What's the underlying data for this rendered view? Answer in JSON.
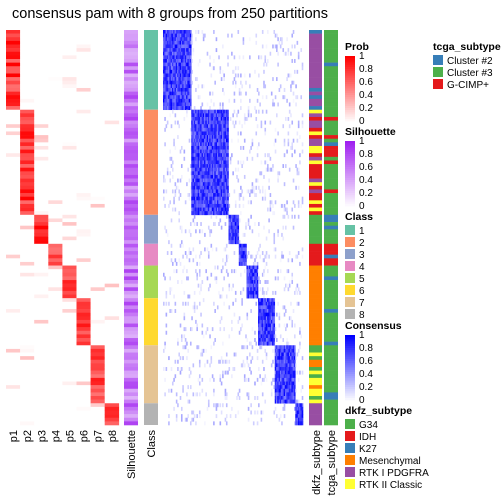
{
  "chart_data": {
    "type": "heatmap",
    "title": "consensus pam with 8 groups from 250 partitions",
    "column_labels": [
      "p1",
      "p2",
      "p3",
      "p4",
      "p5",
      "p6",
      "p7",
      "p8",
      "Silhouette",
      "Class",
      "dkfz_subtype",
      "tcga_subtype"
    ],
    "class_order": [
      "1",
      "2",
      "3",
      "4",
      "5",
      "6",
      "7",
      "8"
    ],
    "class_sizes": [
      22,
      29,
      8,
      6,
      9,
      13,
      16,
      6
    ],
    "legends": {
      "prob": {
        "title": "Prob",
        "ticks": [
          "1",
          "0.8",
          "0.6",
          "0.4",
          "0.2",
          "0"
        ]
      },
      "silhouette": {
        "title": "Silhouette",
        "ticks": [
          "1",
          "0.8",
          "0.6",
          "0.4",
          "0.2",
          "0"
        ]
      },
      "class": {
        "title": "Class",
        "labels": [
          "1",
          "2",
          "3",
          "4",
          "5",
          "6",
          "7",
          "8"
        ],
        "colors": [
          "#66C2A5",
          "#FC8D62",
          "#8DA0CB",
          "#E78AC3",
          "#A6D854",
          "#FFD92F",
          "#E5C494",
          "#B3B3B3"
        ]
      },
      "consensus": {
        "title": "Consensus",
        "ticks": [
          "1",
          "0.8",
          "0.6",
          "0.4",
          "0.2",
          "0"
        ]
      },
      "dkfz_subtype": {
        "title": "dkfz_subtype",
        "labels": [
          "G34",
          "IDH",
          "K27",
          "Mesenchymal",
          "RTK I PDGFRA",
          "RTK II Classic"
        ],
        "colors": [
          "#4DAF4A",
          "#E41A1C",
          "#377EB8",
          "#FF7F00",
          "#984EA3",
          "#FFFF33"
        ]
      },
      "tcga_subtype": {
        "title": "tcga_subtype",
        "labels": [
          "Cluster #2",
          "Cluster #3",
          "G-CIMP+"
        ],
        "colors": [
          "#377EB8",
          "#4DAF4A",
          "#E41A1C"
        ]
      }
    },
    "colors": {
      "prob_high": "#FF0000",
      "silhouette_high": "#A020F0",
      "consensus_high": "#0000FF"
    }
  }
}
